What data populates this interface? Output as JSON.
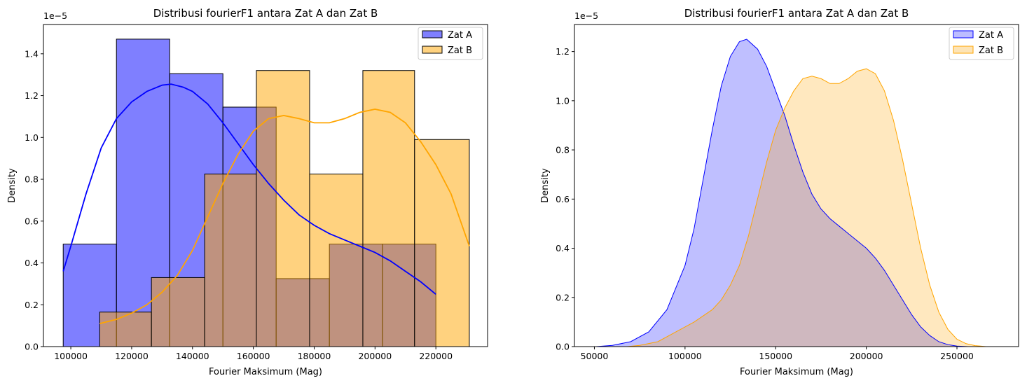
{
  "chart_data": [
    {
      "type": "histogram",
      "title": "Distribusi fourierF1 antara Zat A dan Zat B",
      "xlabel": "Fourier Maksimum (Mag)",
      "ylabel": "Density",
      "offset_text": "1e−5",
      "xlim": [
        91000,
        237000
      ],
      "ylim": [
        0,
        1.54
      ],
      "xticks": [
        100000,
        120000,
        140000,
        160000,
        180000,
        200000,
        220000
      ],
      "yticks": [
        0.0,
        0.2,
        0.4,
        0.6,
        0.8,
        1.0,
        1.2,
        1.4
      ],
      "legend_position": "top-right",
      "series": [
        {
          "name": "Zat A",
          "color": "#0000ff",
          "bins": [
            {
              "x0": 97500,
              "x1": 115000,
              "density": 0.49
            },
            {
              "x0": 115000,
              "x1": 132500,
              "density": 1.47
            },
            {
              "x0": 132500,
              "x1": 150000,
              "density": 1.305
            },
            {
              "x0": 150000,
              "x1": 167500,
              "density": 1.145
            },
            {
              "x0": 167500,
              "x1": 185000,
              "density": 0.325
            },
            {
              "x0": 185000,
              "x1": 202500,
              "density": 0.49
            },
            {
              "x0": 202500,
              "x1": 220000,
              "density": 0.49
            }
          ],
          "kde": [
            [
              97500,
              0.36
            ],
            [
              100000,
              0.48
            ],
            [
              105000,
              0.73
            ],
            [
              110000,
              0.95
            ],
            [
              115000,
              1.09
            ],
            [
              120000,
              1.17
            ],
            [
              125000,
              1.22
            ],
            [
              130000,
              1.25
            ],
            [
              133000,
              1.255
            ],
            [
              137000,
              1.24
            ],
            [
              140000,
              1.22
            ],
            [
              145000,
              1.16
            ],
            [
              150000,
              1.07
            ],
            [
              155000,
              0.97
            ],
            [
              160000,
              0.87
            ],
            [
              165000,
              0.78
            ],
            [
              170000,
              0.7
            ],
            [
              175000,
              0.63
            ],
            [
              180000,
              0.58
            ],
            [
              185000,
              0.54
            ],
            [
              190000,
              0.51
            ],
            [
              195000,
              0.48
            ],
            [
              200000,
              0.45
            ],
            [
              205000,
              0.41
            ],
            [
              210000,
              0.36
            ],
            [
              215000,
              0.31
            ],
            [
              220000,
              0.25
            ]
          ]
        },
        {
          "name": "Zat B",
          "color": "#ffa500",
          "bins": [
            {
              "x0": 109500,
              "x1": 126500,
              "density": 0.165
            },
            {
              "x0": 126500,
              "x1": 144000,
              "density": 0.33
            },
            {
              "x0": 144000,
              "x1": 161000,
              "density": 0.825
            },
            {
              "x0": 161000,
              "x1": 178500,
              "density": 1.32
            },
            {
              "x0": 178500,
              "x1": 196000,
              "density": 0.825
            },
            {
              "x0": 196000,
              "x1": 213000,
              "density": 1.32
            },
            {
              "x0": 213000,
              "x1": 231000,
              "density": 0.99
            }
          ],
          "kde": [
            [
              109500,
              0.11
            ],
            [
              115000,
              0.13
            ],
            [
              120000,
              0.16
            ],
            [
              125000,
              0.2
            ],
            [
              130000,
              0.26
            ],
            [
              135000,
              0.34
            ],
            [
              140000,
              0.46
            ],
            [
              145000,
              0.62
            ],
            [
              150000,
              0.78
            ],
            [
              155000,
              0.92
            ],
            [
              160000,
              1.03
            ],
            [
              165000,
              1.09
            ],
            [
              170000,
              1.105
            ],
            [
              175000,
              1.09
            ],
            [
              180000,
              1.07
            ],
            [
              185000,
              1.07
            ],
            [
              190000,
              1.09
            ],
            [
              195000,
              1.12
            ],
            [
              200000,
              1.135
            ],
            [
              205000,
              1.12
            ],
            [
              210000,
              1.07
            ],
            [
              215000,
              0.98
            ],
            [
              220000,
              0.87
            ],
            [
              225000,
              0.73
            ],
            [
              231000,
              0.48
            ]
          ]
        }
      ]
    },
    {
      "type": "area",
      "title": "Distribusi fourierF1 antara Zat A dan Zat B",
      "xlabel": "Fourier Maksimum (Mag)",
      "ylabel": "Density",
      "offset_text": "1e−5",
      "xlim": [
        39000,
        284000
      ],
      "ylim": [
        0,
        1.31
      ],
      "xticks": [
        50000,
        100000,
        150000,
        200000,
        250000
      ],
      "yticks": [
        0.0,
        0.2,
        0.4,
        0.6,
        0.8,
        1.0,
        1.2
      ],
      "legend_position": "top-right",
      "series": [
        {
          "name": "Zat A",
          "color": "#0000ff",
          "fill": "#bcbcff",
          "kde": [
            [
              51000,
              0.0
            ],
            [
              60000,
              0.005
            ],
            [
              70000,
              0.02
            ],
            [
              80000,
              0.06
            ],
            [
              90000,
              0.15
            ],
            [
              100000,
              0.33
            ],
            [
              105000,
              0.48
            ],
            [
              110000,
              0.68
            ],
            [
              115000,
              0.88
            ],
            [
              120000,
              1.06
            ],
            [
              125000,
              1.18
            ],
            [
              130000,
              1.24
            ],
            [
              134000,
              1.25
            ],
            [
              140000,
              1.21
            ],
            [
              145000,
              1.14
            ],
            [
              150000,
              1.04
            ],
            [
              155000,
              0.94
            ],
            [
              160000,
              0.82
            ],
            [
              165000,
              0.71
            ],
            [
              170000,
              0.62
            ],
            [
              175000,
              0.56
            ],
            [
              180000,
              0.52
            ],
            [
              185000,
              0.49
            ],
            [
              190000,
              0.46
            ],
            [
              195000,
              0.43
            ],
            [
              200000,
              0.4
            ],
            [
              205000,
              0.36
            ],
            [
              210000,
              0.31
            ],
            [
              215000,
              0.25
            ],
            [
              220000,
              0.19
            ],
            [
              225000,
              0.13
            ],
            [
              230000,
              0.08
            ],
            [
              235000,
              0.045
            ],
            [
              240000,
              0.02
            ],
            [
              245000,
              0.008
            ],
            [
              250000,
              0.002
            ],
            [
              256000,
              0.0
            ]
          ]
        },
        {
          "name": "Zat B",
          "color": "#ffa500",
          "fill": "#fde4b6",
          "kde": [
            [
              68000,
              0.0
            ],
            [
              75000,
              0.005
            ],
            [
              85000,
              0.02
            ],
            [
              95000,
              0.06
            ],
            [
              105000,
              0.1
            ],
            [
              115000,
              0.15
            ],
            [
              120000,
              0.19
            ],
            [
              125000,
              0.25
            ],
            [
              130000,
              0.33
            ],
            [
              135000,
              0.45
            ],
            [
              140000,
              0.6
            ],
            [
              145000,
              0.75
            ],
            [
              150000,
              0.88
            ],
            [
              155000,
              0.97
            ],
            [
              160000,
              1.04
            ],
            [
              165000,
              1.09
            ],
            [
              170000,
              1.1
            ],
            [
              175000,
              1.09
            ],
            [
              180000,
              1.07
            ],
            [
              185000,
              1.07
            ],
            [
              190000,
              1.09
            ],
            [
              195000,
              1.12
            ],
            [
              200000,
              1.13
            ],
            [
              205000,
              1.11
            ],
            [
              210000,
              1.04
            ],
            [
              215000,
              0.92
            ],
            [
              220000,
              0.76
            ],
            [
              225000,
              0.58
            ],
            [
              230000,
              0.4
            ],
            [
              235000,
              0.25
            ],
            [
              240000,
              0.14
            ],
            [
              245000,
              0.07
            ],
            [
              250000,
              0.03
            ],
            [
              255000,
              0.012
            ],
            [
              260000,
              0.004
            ],
            [
              266000,
              0.0
            ],
            [
              272000,
              0.0
            ]
          ]
        }
      ]
    }
  ]
}
